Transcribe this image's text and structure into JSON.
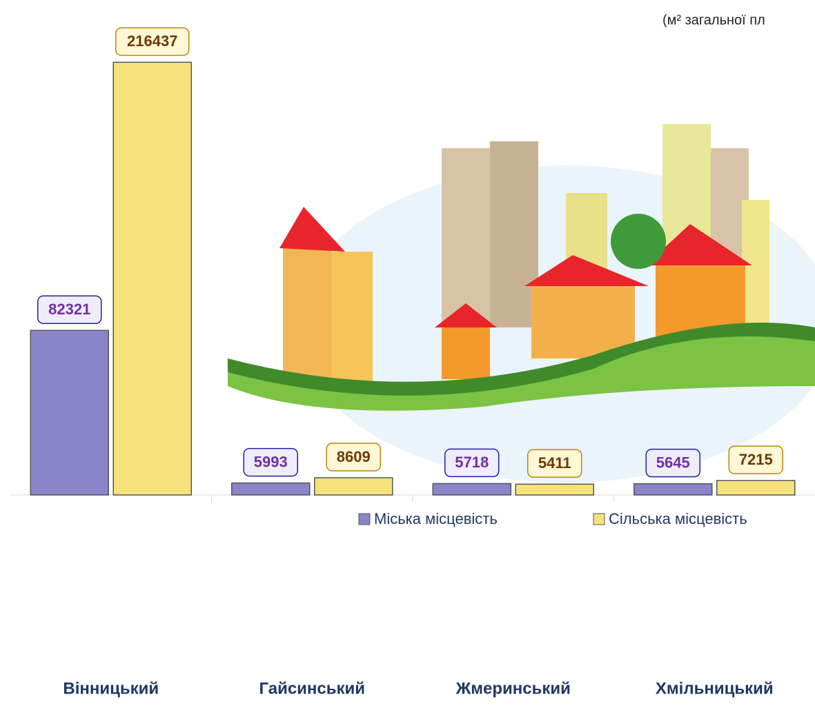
{
  "chart_data": {
    "type": "bar",
    "title": "(м² загальної пл",
    "categories": [
      "Вінницький",
      "Гайсинський",
      "Жмеринський",
      "Хмільницький"
    ],
    "series": [
      {
        "name": "Міська місцевість",
        "color": "#8a84c9",
        "values": [
          82321,
          5993,
          5718,
          5645
        ]
      },
      {
        "name": "Сільська місцевість",
        "color": "#f6e27a",
        "values": [
          216437,
          8609,
          5411,
          7215
        ]
      }
    ],
    "ylim": [
      0,
      220000
    ]
  }
}
